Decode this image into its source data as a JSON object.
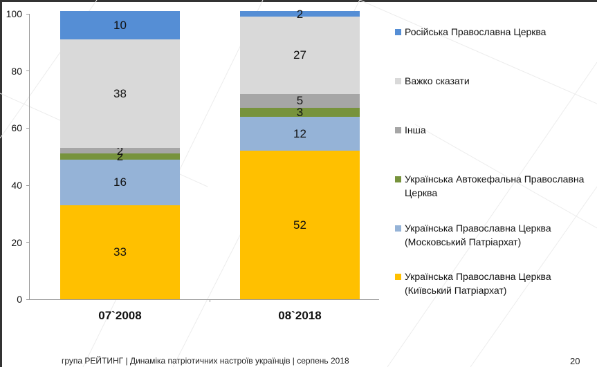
{
  "chart_data": {
    "type": "bar",
    "stacked": true,
    "title": "",
    "xlabel": "",
    "ylabel": "",
    "ylim": [
      0,
      100
    ],
    "yticks": [
      0,
      20,
      40,
      60,
      80,
      100
    ],
    "grid": false,
    "legend_position": "right",
    "categories": [
      "07`2008",
      "08`2018"
    ],
    "series": [
      {
        "name": "Українська Православна Церква (Київський Патріархат)",
        "color": "#FFC000",
        "values": [
          33,
          52
        ]
      },
      {
        "name": "Українська Православна Церква (Московський Патріархат)",
        "color": "#95B3D7",
        "values": [
          16,
          12
        ]
      },
      {
        "name": "Українська Автокефальна Православна Церква",
        "color": "#77933C",
        "values": [
          2,
          3
        ]
      },
      {
        "name": "Інша",
        "color": "#A6A6A6",
        "values": [
          2,
          5
        ]
      },
      {
        "name": "Важко сказати",
        "color": "#D9D9D9",
        "values": [
          38,
          27
        ]
      },
      {
        "name": "Російська Православна Церква",
        "color": "#558ED5",
        "values": [
          10,
          2
        ]
      }
    ]
  },
  "legend": [
    {
      "line1": "Російська Православна Церква",
      "line2": "",
      "color": "#558ED5"
    },
    {
      "line1": "Важко сказати",
      "line2": "",
      "color": "#D9D9D9"
    },
    {
      "line1": "Інша",
      "line2": "",
      "color": "#A6A6A6"
    },
    {
      "line1": "Українська Автокефальна Православна",
      "line2": "Церква",
      "color": "#77933C"
    },
    {
      "line1": "Українська Православна Церква",
      "line2": "(Московський Патріархат)",
      "color": "#95B3D7"
    },
    {
      "line1": "Українська Православна Церква",
      "line2": "(Київський Патріархат)",
      "color": "#FFC000"
    }
  ],
  "axis": {
    "y_labels": [
      "0",
      "20",
      "40",
      "60",
      "80",
      "100"
    ]
  },
  "footer": {
    "text": "група РЕЙТИНГ  | Динаміка патріотичних настроїв українців |  серпень 2018",
    "page_number": "20"
  }
}
